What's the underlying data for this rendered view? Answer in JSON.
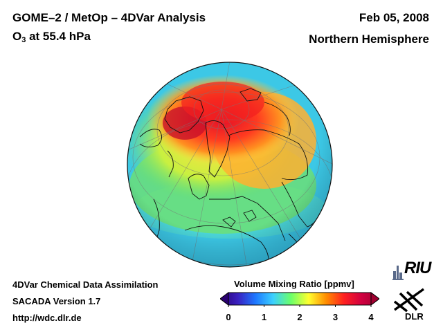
{
  "header": {
    "title": "GOME–2 / MetOp – 4DVar Analysis",
    "species": "O",
    "species_sub": "3",
    "level": " at 55.4 hPa",
    "date": "Feb 05, 2008",
    "region": "Northern Hemisphere"
  },
  "footer": {
    "line1": "4DVar Chemical Data Assimilation",
    "line2": "SACADA Version 1.7",
    "line3": "http://wdc.dlr.de"
  },
  "colorbar": {
    "label": "Volume Mixing Ratio [ppmv]",
    "min": 0,
    "max": 4,
    "ticks": [
      "0",
      "1",
      "2",
      "3",
      "4"
    ],
    "colors": [
      "#2a0070",
      "#3a20c0",
      "#1e78ff",
      "#3cd0ff",
      "#6aff6a",
      "#ffff30",
      "#ff8c00",
      "#ff2020",
      "#d00040",
      "#a00030"
    ]
  },
  "logos": {
    "riu": "RIU",
    "dlr": "DLR"
  },
  "map": {
    "projection": "orthographic",
    "ocean_color": "#3cc8e6",
    "high_ozone_color": "#ff3030",
    "coastline_color": "#111111"
  }
}
